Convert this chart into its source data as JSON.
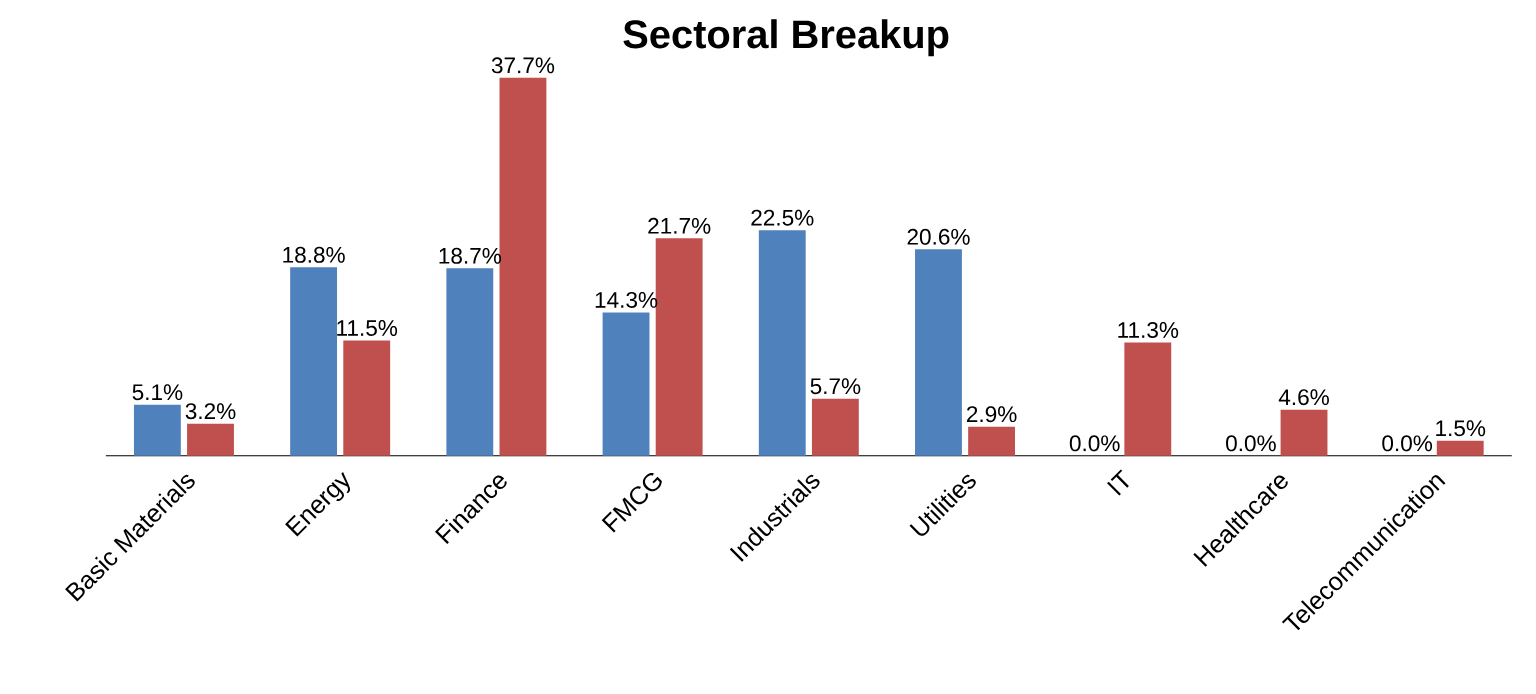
{
  "chart_data": {
    "type": "bar",
    "title": "Sectoral Breakup",
    "categories": [
      "Basic Materials",
      "Energy",
      "Finance",
      "FMCG",
      "Industrials",
      "Utilities",
      "IT",
      "Healthcare",
      "Telecommunication"
    ],
    "series": [
      {
        "color": "#4f81bd",
        "values": [
          5.1,
          18.8,
          18.7,
          14.3,
          22.5,
          20.6,
          0.0,
          0.0,
          0.0
        ],
        "value_labels": [
          "5.1%",
          "18.8%",
          "18.7%",
          "14.3%",
          "22.5%",
          "20.6%",
          "0.0%",
          "0.0%",
          "0.0%"
        ]
      },
      {
        "color": "#c0504d",
        "values": [
          3.2,
          11.5,
          37.7,
          21.7,
          5.7,
          2.9,
          11.3,
          4.6,
          1.5
        ],
        "value_labels": [
          "3.2%",
          "11.5%",
          "37.7%",
          "21.7%",
          "5.7%",
          "2.9%",
          "11.3%",
          "4.6%",
          "1.5%"
        ]
      }
    ]
  }
}
